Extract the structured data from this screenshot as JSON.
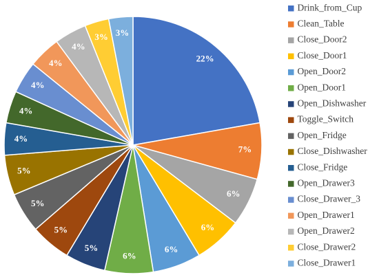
{
  "chart_data": {
    "type": "pie",
    "title": "",
    "legend_placement": "right",
    "slices": [
      {
        "name": "Drink_from_Cup",
        "value": 22,
        "label": "22%",
        "color": "#4472C4"
      },
      {
        "name": "Clean_Table",
        "value": 7,
        "label": "7%",
        "color": "#ED7D31"
      },
      {
        "name": "Close_Door2",
        "value": 6,
        "label": "6%",
        "color": "#A5A5A5"
      },
      {
        "name": "Close_Door1",
        "value": 6,
        "label": "6%",
        "color": "#FFC000"
      },
      {
        "name": "Open_Door2",
        "value": 6,
        "label": "6%",
        "color": "#5B9BD5"
      },
      {
        "name": "Open_Door1",
        "value": 6,
        "label": "6%",
        "color": "#70AD47"
      },
      {
        "name": "Open_Dishwasher",
        "value": 5,
        "label": "5%",
        "color": "#264478"
      },
      {
        "name": "Toggle_Switch",
        "value": 5,
        "label": "5%",
        "color": "#9E480E"
      },
      {
        "name": "Open_Fridge",
        "value": 5,
        "label": "5%",
        "color": "#636363"
      },
      {
        "name": "Close_Dishwasher",
        "value": 5,
        "label": "5%",
        "color": "#997300"
      },
      {
        "name": "Close_Fridge",
        "value": 4,
        "label": "4%",
        "color": "#255E91"
      },
      {
        "name": "Open_Drawer3",
        "value": 4,
        "label": "4%",
        "color": "#43682B"
      },
      {
        "name": "Close_Drawer_3",
        "value": 4,
        "label": "4%",
        "color": "#698ED0"
      },
      {
        "name": "Open_Drawer1",
        "value": 4,
        "label": "4%",
        "color": "#F1975A"
      },
      {
        "name": "Open_Drawer2",
        "value": 4,
        "label": "4%",
        "color": "#B7B7B7"
      },
      {
        "name": "Close_Drawer2",
        "value": 3,
        "label": "3%",
        "color": "#FFCD33"
      },
      {
        "name": "Close_Drawer1",
        "value": 3,
        "label": "3%",
        "color": "#7CAFDD"
      }
    ]
  }
}
